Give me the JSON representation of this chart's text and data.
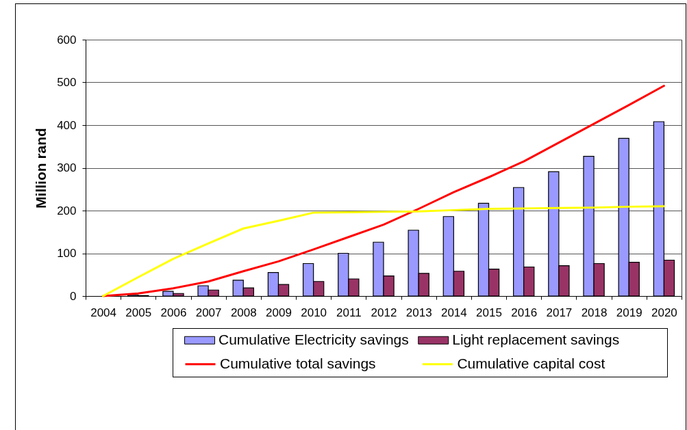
{
  "chart_data": {
    "type": "bar",
    "ylabel": "Million rand",
    "categories": [
      "2004",
      "2005",
      "2006",
      "2007",
      "2008",
      "2009",
      "2010",
      "2011",
      "2012",
      "2013",
      "2014",
      "2015",
      "2016",
      "2017",
      "2018",
      "2019",
      "2020"
    ],
    "series": [
      {
        "name": "Cumulative Electricity savings",
        "color": "#9999ff",
        "values": [
          0,
          2,
          11,
          24,
          37,
          55,
          76,
          100,
          126,
          154,
          186,
          217,
          254,
          291,
          327,
          369,
          408
        ]
      },
      {
        "name": "Light replacement savings",
        "color": "#993366",
        "values": [
          0,
          1,
          6,
          14,
          19,
          27,
          34,
          40,
          47,
          53,
          58,
          63,
          68,
          71,
          76,
          79,
          84
        ]
      },
      {
        "name": "Cumulative total savings",
        "type": "line",
        "color": "#ff0000",
        "values": [
          0,
          6,
          18,
          34,
          58,
          81,
          109,
          138,
          167,
          204,
          243,
          278,
          315,
          359,
          403,
          447,
          492
        ]
      },
      {
        "name": "Cumulative capital cost",
        "type": "line",
        "color": "#ffff00",
        "values": [
          0,
          44,
          87,
          123,
          158,
          176,
          195,
          196,
          197,
          198,
          201,
          204,
          205,
          206,
          207,
          209,
          210
        ]
      }
    ],
    "ylim": [
      0,
      600
    ],
    "yticks": [
      0,
      100,
      200,
      300,
      400,
      500,
      600
    ],
    "grid": "y",
    "legend": "bottom"
  }
}
